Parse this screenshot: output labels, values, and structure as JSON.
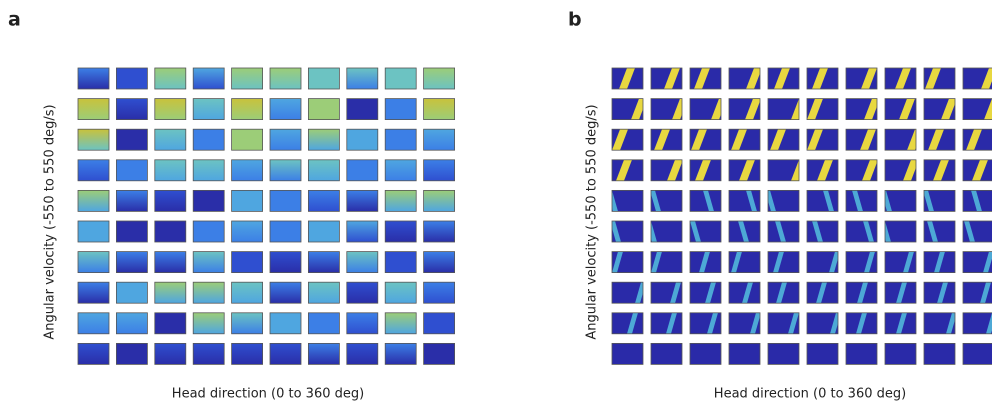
{
  "panels": [
    {
      "label": "a",
      "y_axis_label": "Angular velocity (-550 to 550 deg/s)",
      "x_axis_label": "Head direction (0 to 360 deg)"
    },
    {
      "label": "b",
      "y_axis_label": "Angular velocity (-550 to 550 deg/s)",
      "x_axis_label": "Head direction (0 to 360 deg)"
    }
  ]
}
